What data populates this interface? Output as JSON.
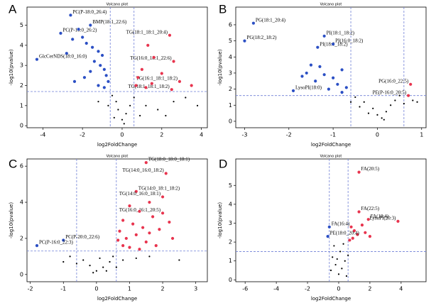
{
  "chart_data": [
    {
      "type": "scatter",
      "panel": "A",
      "title": "Volcano plot",
      "xlabel": "log2FoldChange",
      "ylabel": "-log10(pvalue)",
      "xlim": [
        -4.8,
        4.3
      ],
      "ylim": [
        -0.1,
        5.9
      ],
      "xticks": [
        -4,
        -2,
        0,
        2,
        4
      ],
      "yticks": [
        0,
        1,
        2,
        3,
        4,
        5
      ],
      "vlines": [
        -0.6,
        0.6
      ],
      "hline": 1.7,
      "series": [
        {
          "color": "#2b4fc4",
          "x": [
            -2.6,
            -3.1,
            -1.6,
            -4.3,
            -2.2,
            -2.0,
            -1.8,
            -2.5,
            -1.5,
            -1.2,
            -1.0,
            -2.8,
            -1.4,
            -1.1,
            -0.9,
            -1.6,
            -0.8,
            -1.9,
            -0.7,
            -1.2,
            -0.9,
            -2.4
          ],
          "y": [
            5.5,
            4.6,
            5.0,
            3.3,
            4.8,
            4.4,
            4.1,
            4.3,
            3.9,
            3.7,
            3.5,
            3.6,
            3.2,
            3.0,
            2.8,
            2.7,
            2.5,
            2.4,
            2.2,
            2.0,
            1.9,
            2.2
          ],
          "labels": [
            "PC(P-18:0_26:4)",
            "PC(P-16:0_26:2)",
            "BMP(18:1_22:6)",
            "GlcCerNDS(18:0_16:0)",
            null,
            null,
            null,
            null,
            null,
            null,
            null,
            null,
            null,
            null,
            null,
            null,
            null,
            null,
            null,
            null,
            null,
            null
          ]
        },
        {
          "color": "#e8344e",
          "x": [
            2.4,
            2.6,
            2.9,
            2.5,
            1.3,
            1.6,
            1.0,
            0.8,
            1.5,
            1.2,
            0.7,
            3.5,
            2.0
          ],
          "y": [
            4.5,
            3.2,
            2.2,
            1.8,
            4.0,
            3.4,
            2.8,
            2.4,
            2.1,
            1.9,
            2.0,
            2.0,
            2.6
          ],
          "labels": [
            "TG(18:1_18:1_20:4)",
            "TG(16:0_18:1_22:6)",
            "TG(16:1_18:1_18:2)",
            "TG(18:1_18:1_18:2)",
            null,
            null,
            null,
            null,
            null,
            null,
            null,
            null,
            null
          ]
        },
        {
          "color": "#000000",
          "x": [
            -0.5,
            -0.3,
            0,
            0.2,
            -0.2,
            0.4,
            0.6,
            -0.7,
            0.1,
            1.2,
            1.8,
            2.6,
            3.2,
            3.8,
            -1.2,
            0.9,
            -0.4,
            2.2
          ],
          "y": [
            1.5,
            1.2,
            0.3,
            0.6,
            0.8,
            1.0,
            1.4,
            1.0,
            0.1,
            1.0,
            0.8,
            1.2,
            1.4,
            1.0,
            1.2,
            0.5,
            0.4,
            0.5
          ]
        }
      ]
    },
    {
      "type": "scatter",
      "panel": "B",
      "title": "Volcano plot",
      "xlabel": "log2FoldChange",
      "ylabel": "-log10(pvalue)",
      "xlim": [
        -3.2,
        1.1
      ],
      "ylim": [
        -0.4,
        7.1
      ],
      "xticks": [
        -3,
        -2,
        -1,
        0,
        1
      ],
      "yticks": [
        0,
        1,
        2,
        3,
        4,
        5,
        6
      ],
      "vlines": [
        -0.6,
        0.6
      ],
      "hline": 1.6,
      "series": [
        {
          "color": "#2b4fc4",
          "x": [
            -2.8,
            -3.0,
            -1.2,
            -1.35,
            -1.0,
            -1.9,
            -1.5,
            -1.3,
            -1.6,
            -1.2,
            -1.0,
            -0.8,
            -1.4,
            -0.9,
            -0.7,
            -1.1,
            -0.8,
            -1.7
          ],
          "y": [
            6.1,
            5.0,
            5.3,
            4.6,
            4.8,
            1.9,
            3.5,
            3.4,
            3.0,
            2.9,
            2.7,
            3.2,
            2.5,
            2.3,
            2.1,
            2.0,
            1.8,
            2.8
          ],
          "labels": [
            "PG(18:1_20:4)",
            "PG(18:2_18:2)",
            "PI(18:1_18:2)",
            "PI(18:0_18:2)",
            "PI(16:0_18:2)",
            "LysoPI(18:0)",
            null,
            null,
            null,
            null,
            null,
            null,
            null,
            null,
            null,
            null,
            null,
            null
          ]
        },
        {
          "color": "#e8344e",
          "x": [
            0.75,
            0.7
          ],
          "y": [
            2.3,
            1.6
          ],
          "labels": [
            "PG(16:0_22:5)",
            "PE(P-16:0_20:5)"
          ]
        },
        {
          "color": "#000000",
          "x": [
            -0.5,
            -0.3,
            -0.1,
            0,
            0.1,
            0.2,
            0.3,
            0.4,
            0.5,
            -0.4,
            0.15,
            -0.2,
            0.6,
            0.8,
            0.9,
            -0.6
          ],
          "y": [
            1.5,
            1.2,
            0.8,
            0.4,
            0.2,
            0.6,
            1.0,
            1.3,
            1.6,
            0.9,
            0.1,
            0.5,
            1.1,
            1.3,
            1.2,
            1.2
          ]
        }
      ]
    },
    {
      "type": "scatter",
      "panel": "C",
      "title": "Volcano plot",
      "xlabel": "log2FoldChange",
      "ylabel": "-log10(pvalue)",
      "xlim": [
        -2.1,
        3.35
      ],
      "ylim": [
        -0.4,
        6.4
      ],
      "xticks": [
        -2,
        -1,
        0,
        1,
        2,
        3
      ],
      "yticks": [
        0,
        2,
        4,
        6
      ],
      "vlines": [
        -0.6,
        0.6
      ],
      "hline": 1.3,
      "series": [
        {
          "color": "#e8344e",
          "x": [
            1.5,
            2.1,
            1.2,
            2.0,
            2.0,
            1.0,
            1.3,
            1.6,
            0.8,
            1.1,
            1.4,
            1.7,
            0.7,
            0.9,
            1.2,
            1.5,
            1.9,
            2.2,
            0.8,
            1.0,
            1.3,
            1.8,
            2.3,
            0.65,
            1.6
          ],
          "y": [
            6.2,
            5.6,
            4.6,
            4.3,
            3.4,
            3.8,
            3.5,
            4.0,
            3.0,
            2.8,
            2.6,
            3.2,
            2.4,
            2.0,
            2.2,
            1.8,
            2.5,
            2.9,
            1.6,
            1.5,
            1.4,
            1.6,
            2.0,
            1.9,
            2.3
          ],
          "labels": [
            "TG(18:0_18:0_18:1)",
            "TG(14:0_16:0_18:2)",
            "TG(14:0_18:1_18:2)",
            "TG(14:0_16:0_18:1)",
            "TG(16:0_16:1_20:5)",
            null,
            null,
            null,
            null,
            null,
            null,
            null,
            null,
            null,
            null,
            null,
            null,
            null,
            null,
            null,
            null,
            null,
            null,
            null,
            null
          ]
        },
        {
          "color": "#2b4fc4",
          "x": [
            -1.0,
            -1.8
          ],
          "y": [
            1.9,
            1.6
          ],
          "labels": [
            "PC(P-20:0_22:6)",
            "PC(P-16:0_22:3)"
          ]
        },
        {
          "color": "#000000",
          "x": [
            -0.8,
            -0.4,
            -0.2,
            0,
            0.2,
            0.4,
            0.5,
            -0.6,
            0.1,
            -0.1,
            0.3,
            0.8,
            1.2,
            1.6,
            -1.0,
            2.5,
            0.6
          ],
          "y": [
            1.0,
            0.8,
            0.5,
            0.2,
            0.4,
            0.7,
            1.0,
            0.6,
            0.9,
            0.1,
            0.2,
            0.8,
            0.9,
            1.0,
            0.7,
            0.8,
            0.4
          ]
        }
      ]
    },
    {
      "type": "scatter",
      "panel": "D",
      "title": "Volcano plot",
      "xlabel": "log2FoldChange",
      "ylabel": "-log10(pvalue)",
      "xlim": [
        -6.6,
        5.6
      ],
      "ylim": [
        -0.1,
        6.4
      ],
      "xticks": [
        -6,
        -4,
        -2,
        0,
        2,
        4
      ],
      "yticks": [
        0,
        1,
        2,
        3,
        4,
        5
      ],
      "vlines": [
        -0.6,
        0.6
      ],
      "hline": 1.5,
      "series": [
        {
          "color": "#e8344e",
          "x": [
            1.3,
            1.3,
            1.9,
            3.8,
            0.8,
            1.0,
            1.2,
            0.9,
            1.5,
            1.7,
            2.0,
            0.7
          ],
          "y": [
            5.7,
            3.6,
            3.2,
            3.1,
            2.8,
            2.6,
            2.4,
            2.2,
            2.9,
            2.5,
            2.3,
            2.1
          ],
          "labels": [
            "FA(20:5)",
            "FA(22:5)",
            "FA(18:4)",
            "LysoPI(20:3)",
            null,
            null,
            null,
            null,
            null,
            null,
            null,
            null
          ]
        },
        {
          "color": "#2b4fc4",
          "x": [
            -0.6,
            -0.7
          ],
          "y": [
            2.8,
            2.3
          ],
          "labels": [
            "FA(16:4)",
            "PE(18:0_20:4)"
          ]
        },
        {
          "color": "#000000",
          "x": [
            -0.4,
            -0.2,
            0,
            0.2,
            0.4,
            0.6,
            -0.5,
            0.1,
            -0.3,
            0.3,
            0.5,
            -0.1
          ],
          "y": [
            1.2,
            0.8,
            0.3,
            0.6,
            1.0,
            1.3,
            0.5,
            1.5,
            1.8,
            1.9,
            0.2,
            1.1
          ]
        }
      ]
    }
  ]
}
